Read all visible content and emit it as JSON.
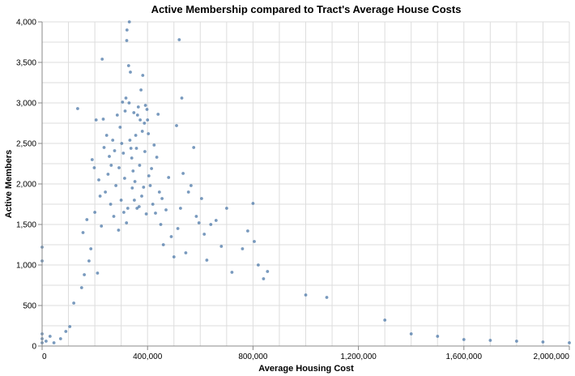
{
  "chart_data": {
    "type": "scatter",
    "title": "Active Membership compared to Tract's Average House Costs",
    "xlabel": "Average Housing Cost",
    "ylabel": "Active Members",
    "xlim": [
      0,
      2000000
    ],
    "ylim": [
      0,
      4000
    ],
    "x_ticks": [
      0,
      400000,
      800000,
      1200000,
      1600000,
      2000000
    ],
    "x_tick_labels": [
      "0",
      "400,000",
      "800,000",
      "1,200,000",
      "1,600,000",
      "2,000,000"
    ],
    "y_ticks": [
      0,
      500,
      1000,
      1500,
      2000,
      2500,
      3000,
      3500,
      4000
    ],
    "y_tick_labels": [
      "0",
      "500",
      "1,000",
      "1,500",
      "2,000",
      "2,500",
      "3,000",
      "3,500",
      "4,000"
    ],
    "grid": true,
    "point_color": "#4c78a8",
    "points": [
      [
        0,
        1220
      ],
      [
        0,
        1050
      ],
      [
        0,
        150
      ],
      [
        0,
        90
      ],
      [
        0,
        40
      ],
      [
        15000,
        60
      ],
      [
        30000,
        120
      ],
      [
        45000,
        40
      ],
      [
        70000,
        90
      ],
      [
        90000,
        180
      ],
      [
        105000,
        240
      ],
      [
        120000,
        530
      ],
      [
        135000,
        2930
      ],
      [
        150000,
        720
      ],
      [
        155000,
        1400
      ],
      [
        160000,
        880
      ],
      [
        170000,
        1560
      ],
      [
        178000,
        1050
      ],
      [
        185000,
        1200
      ],
      [
        190000,
        2300
      ],
      [
        198000,
        2200
      ],
      [
        200000,
        1650
      ],
      [
        205000,
        2790
      ],
      [
        210000,
        900
      ],
      [
        215000,
        2050
      ],
      [
        220000,
        1850
      ],
      [
        225000,
        1480
      ],
      [
        228000,
        3540
      ],
      [
        232000,
        2800
      ],
      [
        235000,
        2450
      ],
      [
        240000,
        1900
      ],
      [
        245000,
        2600
      ],
      [
        250000,
        2120
      ],
      [
        255000,
        2340
      ],
      [
        260000,
        1750
      ],
      [
        262000,
        2230
      ],
      [
        268000,
        2540
      ],
      [
        272000,
        1600
      ],
      [
        275000,
        2410
      ],
      [
        280000,
        1980
      ],
      [
        285000,
        2850
      ],
      [
        290000,
        1430
      ],
      [
        292000,
        2200
      ],
      [
        296000,
        2700
      ],
      [
        300000,
        1800
      ],
      [
        302000,
        2500
      ],
      [
        305000,
        3010
      ],
      [
        308000,
        2380
      ],
      [
        310000,
        1650
      ],
      [
        313000,
        2070
      ],
      [
        315000,
        2900
      ],
      [
        318000,
        3060
      ],
      [
        320000,
        1520
      ],
      [
        321000,
        3770
      ],
      [
        322000,
        3900
      ],
      [
        325000,
        1700
      ],
      [
        328000,
        3460
      ],
      [
        330000,
        3000
      ],
      [
        331000,
        4000
      ],
      [
        333000,
        2540
      ],
      [
        335000,
        3380
      ],
      [
        337000,
        2440
      ],
      [
        340000,
        2320
      ],
      [
        342000,
        1950
      ],
      [
        345000,
        2160
      ],
      [
        348000,
        2880
      ],
      [
        350000,
        1800
      ],
      [
        352000,
        2030
      ],
      [
        355000,
        2600
      ],
      [
        358000,
        2440
      ],
      [
        360000,
        1700
      ],
      [
        362000,
        2850
      ],
      [
        365000,
        2950
      ],
      [
        368000,
        1720
      ],
      [
        370000,
        2230
      ],
      [
        372000,
        2790
      ],
      [
        375000,
        3160
      ],
      [
        378000,
        1850
      ],
      [
        380000,
        2650
      ],
      [
        382000,
        3340
      ],
      [
        385000,
        1960
      ],
      [
        388000,
        2750
      ],
      [
        390000,
        2400
      ],
      [
        392000,
        2970
      ],
      [
        395000,
        1630
      ],
      [
        398000,
        2920
      ],
      [
        400000,
        2790
      ],
      [
        403000,
        2620
      ],
      [
        405000,
        2100
      ],
      [
        410000,
        1980
      ],
      [
        415000,
        2190
      ],
      [
        420000,
        1750
      ],
      [
        425000,
        2480
      ],
      [
        430000,
        1640
      ],
      [
        435000,
        2330
      ],
      [
        440000,
        2860
      ],
      [
        445000,
        1900
      ],
      [
        450000,
        1500
      ],
      [
        455000,
        1820
      ],
      [
        460000,
        1250
      ],
      [
        470000,
        1680
      ],
      [
        480000,
        2080
      ],
      [
        490000,
        1350
      ],
      [
        500000,
        1100
      ],
      [
        510000,
        2720
      ],
      [
        515000,
        1450
      ],
      [
        520000,
        3780
      ],
      [
        525000,
        1700
      ],
      [
        530000,
        3060
      ],
      [
        535000,
        2130
      ],
      [
        545000,
        1150
      ],
      [
        555000,
        1900
      ],
      [
        565000,
        1980
      ],
      [
        575000,
        2450
      ],
      [
        585000,
        1600
      ],
      [
        595000,
        1520
      ],
      [
        605000,
        1820
      ],
      [
        615000,
        1380
      ],
      [
        625000,
        1060
      ],
      [
        640000,
        1500
      ],
      [
        660000,
        1550
      ],
      [
        680000,
        1230
      ],
      [
        700000,
        1700
      ],
      [
        720000,
        910
      ],
      [
        760000,
        1200
      ],
      [
        780000,
        1420
      ],
      [
        800000,
        1760
      ],
      [
        805000,
        1290
      ],
      [
        820000,
        1000
      ],
      [
        840000,
        830
      ],
      [
        855000,
        920
      ],
      [
        1000000,
        630
      ],
      [
        1080000,
        600
      ],
      [
        1300000,
        320
      ],
      [
        1400000,
        150
      ],
      [
        1500000,
        120
      ],
      [
        1600000,
        80
      ],
      [
        1700000,
        70
      ],
      [
        1800000,
        60
      ],
      [
        1900000,
        50
      ],
      [
        2000000,
        40
      ]
    ]
  }
}
